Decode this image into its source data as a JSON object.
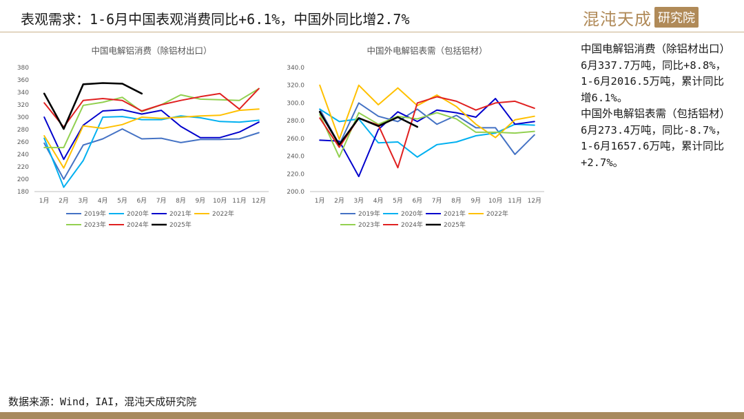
{
  "header": {
    "title": "表观需求：1-6月中国表观消费同比+6.1%，中国外同比增2.7%",
    "logo_main": "混沌天成",
    "logo_box": "研究院"
  },
  "summary": {
    "para1": "中国电解铝消费（除铝材出口）6月337.7万吨，同比+8.8%，1-6月2016.5万吨，累计同比增6.1%。",
    "para2": "中国外电解铝表需（包括铝材）6月273.4万吨，同比-8.7%，1-6月1657.6万吨，累计同比+2.7%。"
  },
  "footer": {
    "source": "数据来源：Wind，IAI，混沌天成研究院"
  },
  "colors": {
    "2019年": "#4472c4",
    "2020年": "#00b0f0",
    "2021年": "#0000cc",
    "2022年": "#ffc000",
    "2023年": "#92d050",
    "2024年": "#e02020",
    "2025年": "#000000"
  },
  "chart_data": [
    {
      "type": "line",
      "title": "中国电解铝消费（除铝材出口）",
      "categories": [
        "1月",
        "2月",
        "3月",
        "4月",
        "5月",
        "6月",
        "7月",
        "8月",
        "9月",
        "10月",
        "11月",
        "12月"
      ],
      "ylim": [
        180,
        380
      ],
      "yticks": [
        "180",
        "200",
        "220",
        "240",
        "260",
        "280",
        "300",
        "320",
        "340",
        "360",
        "380"
      ],
      "grid": false,
      "legend_position": "bottom",
      "series": [
        {
          "name": "2019年",
          "values": [
            258,
            200,
            255,
            265,
            281,
            265,
            266,
            259,
            264,
            264,
            265,
            275
          ]
        },
        {
          "name": "2020年",
          "values": [
            266,
            187,
            230,
            300,
            301,
            296,
            296,
            302,
            299,
            293,
            292,
            295
          ]
        },
        {
          "name": "2021年",
          "values": [
            300,
            232,
            287,
            310,
            312,
            305,
            311,
            285,
            267,
            267,
            276,
            292
          ]
        },
        {
          "name": "2022年",
          "values": [
            270,
            218,
            286,
            282,
            288,
            300,
            298,
            300,
            302,
            303,
            311,
            313
          ]
        },
        {
          "name": "2023年",
          "values": [
            251,
            251,
            319,
            324,
            332,
            309,
            320,
            336,
            329,
            328,
            327,
            346
          ]
        },
        {
          "name": "2024年",
          "values": [
            323,
            284,
            327,
            330,
            327,
            310,
            320,
            327,
            333,
            338,
            313,
            346
          ]
        },
        {
          "name": "2025年",
          "values": [
            338,
            281,
            353,
            355,
            354,
            338,
            null,
            null,
            null,
            null,
            null,
            null
          ]
        }
      ]
    },
    {
      "type": "line",
      "title": "中国外电解铝表需（包括铝材）",
      "categories": [
        "1月",
        "2月",
        "3月",
        "4月",
        "5月",
        "6月",
        "7月",
        "8月",
        "9月",
        "10月",
        "11月",
        "12月"
      ],
      "ylim": [
        200,
        340
      ],
      "yticks": [
        "200.0",
        "220.0",
        "240.0",
        "260.0",
        "280.0",
        "300.0",
        "320.0",
        "340.0"
      ],
      "grid": false,
      "legend_position": "bottom",
      "series": [
        {
          "name": "2019年",
          "values": [
            293,
            253,
            300,
            285,
            279,
            293,
            276,
            286,
            272,
            272,
            242,
            264
          ]
        },
        {
          "name": "2020年",
          "values": [
            293,
            279,
            282,
            255,
            256,
            239,
            253,
            256,
            263,
            266,
            276,
            275
          ]
        },
        {
          "name": "2021年",
          "values": [
            258,
            257,
            217,
            270,
            290,
            279,
            292,
            289,
            284,
            305,
            276,
            279
          ]
        },
        {
          "name": "2022年",
          "values": [
            320,
            259,
            320,
            298,
            317,
            297,
            309,
            296,
            276,
            261,
            281,
            285
          ]
        },
        {
          "name": "2023年",
          "values": [
            287,
            239,
            289,
            276,
            285,
            282,
            289,
            282,
            267,
            267,
            266,
            268
          ]
        },
        {
          "name": "2024年",
          "values": [
            283,
            250,
            283,
            275,
            227,
            300,
            307,
            302,
            292,
            300,
            302,
            294
          ]
        },
        {
          "name": "2025年",
          "values": [
            290,
            253,
            283,
            274,
            284,
            273,
            null,
            null,
            null,
            null,
            null,
            null
          ]
        }
      ]
    }
  ]
}
